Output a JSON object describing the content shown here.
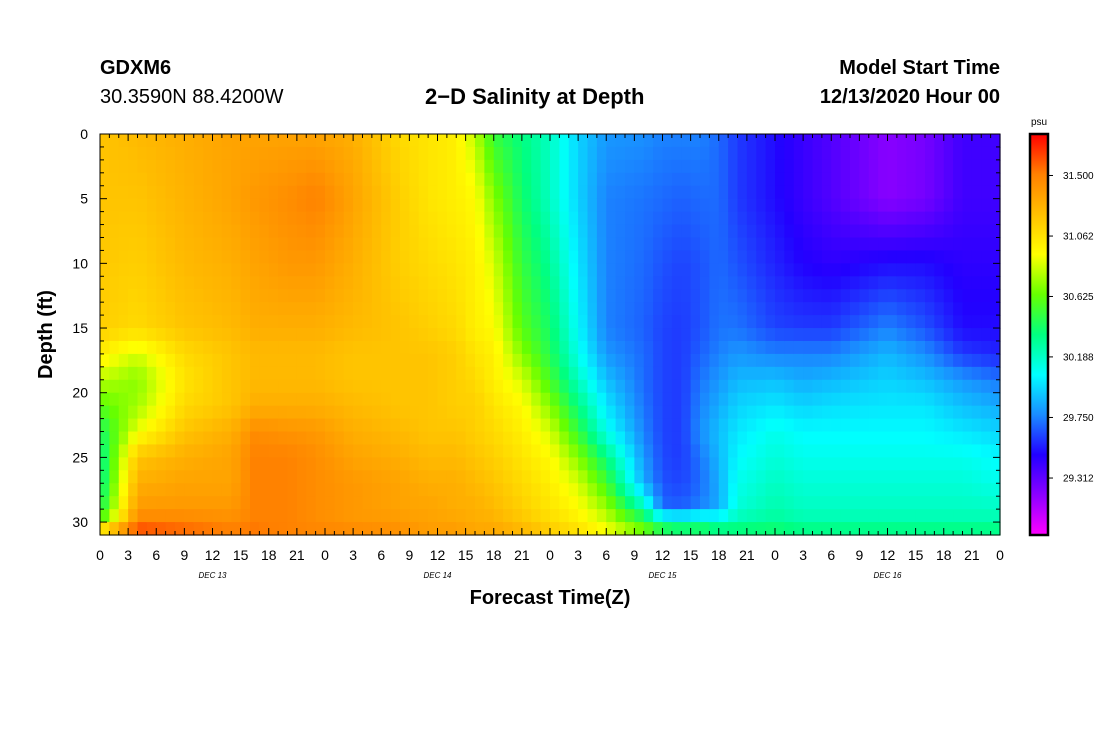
{
  "header": {
    "station": "GDXM6",
    "coords": "30.3590N 88.4200W",
    "title": "2−D Salinity at Depth",
    "start_label": "Model Start Time",
    "start_value": "12/13/2020 Hour 00"
  },
  "chart_data": {
    "type": "heatmap",
    "title": "2−D Salinity at Depth",
    "xlabel": "Forecast Time(Z)",
    "ylabel": "Depth (ft)",
    "x_unit": "hours from model start (12/13/2020 00Z)",
    "xlim": [
      0,
      96
    ],
    "ylim": [
      0,
      31
    ],
    "y_inverted": true,
    "x_tick_labels": [
      "0",
      "3",
      "6",
      "9",
      "12",
      "15",
      "18",
      "21",
      "0",
      "3",
      "6",
      "9",
      "12",
      "15",
      "18",
      "21",
      "0",
      "3",
      "6",
      "9",
      "12",
      "15",
      "18",
      "21",
      "0",
      "3",
      "6",
      "9",
      "12",
      "15",
      "18",
      "21",
      "0"
    ],
    "x_ticks": [
      0,
      3,
      6,
      9,
      12,
      15,
      18,
      21,
      24,
      27,
      30,
      33,
      36,
      39,
      42,
      45,
      48,
      51,
      54,
      57,
      60,
      63,
      66,
      69,
      72,
      75,
      78,
      81,
      84,
      87,
      90,
      93,
      96
    ],
    "day_labels": [
      {
        "text": "DEC 13",
        "x": 12
      },
      {
        "text": "DEC 14",
        "x": 36
      },
      {
        "text": "DEC 15",
        "x": 60
      },
      {
        "text": "DEC 16",
        "x": 84
      }
    ],
    "y_ticks": [
      0,
      5,
      10,
      15,
      20,
      25,
      30
    ],
    "colorbar": {
      "unit": "psu",
      "min": 28.9,
      "max": 31.8,
      "tick_values": [
        31.5,
        31.062,
        30.625,
        30.188,
        29.75,
        29.312
      ],
      "tick_labels": [
        "31.500",
        "31.062",
        "30.625",
        "30.188",
        "29.750",
        "29.312"
      ],
      "colors": [
        "#ff00ff",
        "#8c00ff",
        "#2200ff",
        "#1a8cff",
        "#00ffff",
        "#00ff80",
        "#66ff00",
        "#ffff00",
        "#ffc000",
        "#ff8000",
        "#ff0000"
      ]
    },
    "time_nodes": [
      0,
      4,
      9,
      14,
      16.5,
      20,
      23,
      27,
      32,
      35,
      38,
      40,
      42,
      45,
      48,
      51,
      54,
      58,
      60,
      62,
      64,
      66,
      68,
      72,
      75,
      78,
      84,
      88,
      92,
      96
    ],
    "depth_nodes": [
      0,
      5,
      10,
      15,
      17,
      19,
      21,
      23,
      25,
      27,
      29,
      30,
      31
    ],
    "values": [
      [
        31.2,
        31.2,
        31.18,
        31.15,
        31.0,
        30.8,
        30.6,
        30.4,
        30.3,
        30.3,
        30.4,
        30.6,
        31.4
      ],
      [
        31.25,
        31.2,
        31.15,
        31.1,
        30.85,
        30.7,
        30.75,
        30.9,
        31.2,
        31.3,
        31.4,
        31.5,
        31.7
      ],
      [
        31.3,
        31.28,
        31.25,
        31.2,
        31.1,
        31.05,
        31.1,
        31.2,
        31.3,
        31.35,
        31.4,
        31.5,
        31.6
      ],
      [
        31.35,
        31.35,
        31.3,
        31.25,
        31.2,
        31.2,
        31.2,
        31.3,
        31.35,
        31.35,
        31.4,
        31.45,
        31.55
      ],
      [
        31.35,
        31.4,
        31.35,
        31.3,
        31.25,
        31.25,
        31.3,
        31.45,
        31.5,
        31.5,
        31.5,
        31.5,
        31.55
      ],
      [
        31.35,
        31.45,
        31.4,
        31.3,
        31.25,
        31.25,
        31.3,
        31.42,
        31.5,
        31.5,
        31.5,
        31.5,
        31.5
      ],
      [
        31.35,
        31.5,
        31.4,
        31.3,
        31.25,
        31.25,
        31.3,
        31.4,
        31.45,
        31.45,
        31.45,
        31.45,
        31.5
      ],
      [
        31.3,
        31.35,
        31.3,
        31.25,
        31.2,
        31.2,
        31.25,
        31.3,
        31.35,
        31.4,
        31.4,
        31.4,
        31.5
      ],
      [
        31.1,
        31.15,
        31.15,
        31.2,
        31.2,
        31.2,
        31.2,
        31.25,
        31.3,
        31.35,
        31.35,
        31.4,
        31.45
      ],
      [
        31.05,
        31.05,
        31.1,
        31.15,
        31.2,
        31.2,
        31.2,
        31.2,
        31.25,
        31.3,
        31.35,
        31.35,
        31.4
      ],
      [
        31.0,
        31.0,
        31.05,
        31.1,
        31.15,
        31.15,
        31.15,
        31.2,
        31.25,
        31.3,
        31.3,
        31.35,
        31.4
      ],
      [
        30.8,
        30.95,
        31.0,
        31.0,
        31.05,
        31.1,
        31.15,
        31.15,
        31.2,
        31.25,
        31.3,
        31.3,
        31.35
      ],
      [
        30.5,
        30.7,
        30.85,
        30.95,
        31.0,
        31.0,
        31.05,
        31.1,
        31.15,
        31.2,
        31.25,
        31.3,
        31.35
      ],
      [
        30.35,
        30.4,
        30.5,
        30.6,
        30.7,
        30.85,
        30.95,
        31.0,
        31.05,
        31.1,
        31.15,
        31.2,
        31.3
      ],
      [
        30.2,
        30.2,
        30.3,
        30.4,
        30.45,
        30.55,
        30.7,
        30.85,
        30.95,
        31.0,
        31.05,
        31.1,
        31.2
      ],
      [
        29.95,
        29.95,
        30.0,
        30.05,
        30.1,
        30.2,
        30.35,
        30.5,
        30.7,
        30.85,
        30.95,
        31.0,
        31.1
      ],
      [
        29.8,
        29.75,
        29.75,
        29.75,
        29.8,
        29.9,
        30.0,
        30.1,
        30.35,
        30.55,
        30.75,
        30.85,
        30.95
      ],
      [
        29.78,
        29.72,
        29.7,
        29.68,
        29.7,
        29.7,
        29.72,
        29.75,
        29.8,
        29.85,
        30.25,
        30.55,
        30.7
      ],
      [
        29.75,
        29.7,
        29.65,
        29.62,
        29.62,
        29.62,
        29.62,
        29.62,
        29.63,
        29.65,
        29.7,
        30.3,
        30.55
      ],
      [
        29.75,
        29.68,
        29.62,
        29.6,
        29.6,
        29.6,
        29.6,
        29.6,
        29.6,
        29.62,
        29.68,
        30.25,
        30.5
      ],
      [
        29.75,
        29.7,
        29.65,
        29.65,
        29.68,
        29.72,
        29.75,
        29.78,
        29.72,
        29.7,
        29.75,
        30.3,
        30.5
      ],
      [
        29.7,
        29.7,
        29.7,
        29.72,
        29.75,
        29.8,
        29.85,
        29.9,
        29.88,
        29.85,
        29.85,
        30.2,
        30.45
      ],
      [
        29.6,
        29.6,
        29.65,
        29.72,
        29.8,
        29.88,
        29.95,
        30.0,
        30.05,
        30.1,
        30.15,
        30.25,
        30.45
      ],
      [
        29.5,
        29.5,
        29.55,
        29.62,
        29.75,
        29.9,
        30.0,
        30.1,
        30.15,
        30.2,
        30.25,
        30.3,
        30.45
      ],
      [
        29.42,
        29.42,
        29.48,
        29.6,
        29.75,
        29.85,
        29.95,
        30.05,
        30.1,
        30.15,
        30.2,
        30.25,
        30.4
      ],
      [
        29.35,
        29.35,
        29.45,
        29.6,
        29.75,
        29.88,
        29.98,
        30.05,
        30.1,
        30.15,
        30.2,
        30.25,
        30.4
      ],
      [
        29.2,
        29.2,
        29.5,
        29.75,
        29.88,
        29.95,
        30.0,
        30.05,
        30.1,
        30.15,
        30.2,
        30.25,
        30.4
      ],
      [
        29.25,
        29.25,
        29.5,
        29.65,
        29.78,
        29.9,
        30.0,
        30.05,
        30.1,
        30.15,
        30.2,
        30.25,
        30.4
      ],
      [
        29.4,
        29.4,
        29.45,
        29.5,
        29.6,
        29.8,
        29.9,
        30.0,
        30.1,
        30.15,
        30.2,
        30.25,
        30.4
      ],
      [
        29.4,
        29.4,
        29.45,
        29.5,
        29.55,
        29.72,
        29.85,
        29.95,
        30.05,
        30.1,
        30.2,
        30.25,
        30.4
      ]
    ]
  }
}
